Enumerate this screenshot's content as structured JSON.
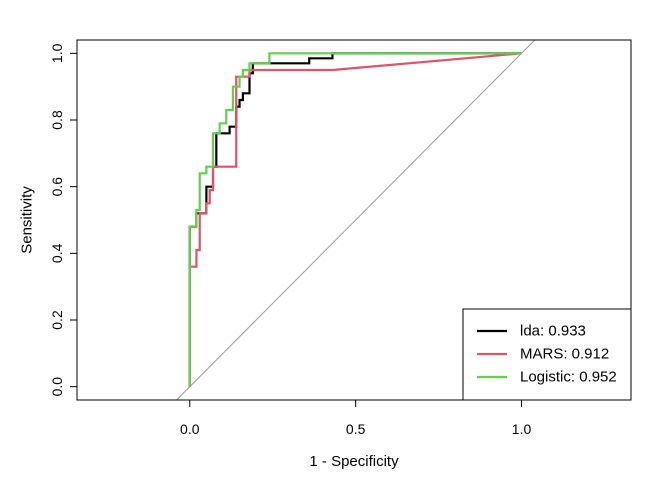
{
  "chart_data": {
    "type": "line",
    "title": "",
    "xlabel": "1 - Specificity",
    "ylabel": "Sensitivity",
    "xlim": [
      -0.34,
      1.33
    ],
    "ylim": [
      -0.04,
      1.04
    ],
    "xticks": [
      0.0,
      0.5,
      1.0
    ],
    "xtick_labels": [
      "0.0",
      "0.5",
      "1.0"
    ],
    "yticks": [
      0.0,
      0.2,
      0.4,
      0.6,
      0.8,
      1.0
    ],
    "ytick_labels": [
      "0.0",
      "0.2",
      "0.4",
      "0.6",
      "0.8",
      "1.0"
    ],
    "grid": false,
    "legend_position": "bottom-right",
    "reference_line": {
      "x": [
        -0.04,
        1.04
      ],
      "y": [
        -0.04,
        1.04
      ],
      "color": "#999999"
    },
    "series": [
      {
        "name": "lda: 0.933",
        "color": "#000000",
        "x": [
          0.0,
          0.0,
          0.02,
          0.02,
          0.03,
          0.03,
          0.05,
          0.05,
          0.07,
          0.07,
          0.08,
          0.08,
          0.12,
          0.12,
          0.14,
          0.14,
          0.15,
          0.15,
          0.16,
          0.16,
          0.18,
          0.18,
          0.19,
          0.19,
          0.36,
          0.36,
          0.43,
          0.43,
          1.0
        ],
        "y": [
          0.0,
          0.48,
          0.48,
          0.52,
          0.52,
          0.52,
          0.52,
          0.6,
          0.6,
          0.66,
          0.66,
          0.76,
          0.76,
          0.78,
          0.78,
          0.84,
          0.84,
          0.86,
          0.86,
          0.88,
          0.88,
          0.94,
          0.94,
          0.97,
          0.97,
          0.985,
          0.985,
          1.0,
          1.0
        ]
      },
      {
        "name": "MARS: 0.912",
        "color": "#DF536B",
        "x": [
          0.0,
          0.0,
          0.02,
          0.02,
          0.03,
          0.03,
          0.05,
          0.05,
          0.06,
          0.06,
          0.07,
          0.07,
          0.1,
          0.1,
          0.14,
          0.14,
          0.18,
          0.18,
          0.43,
          1.0
        ],
        "y": [
          0.0,
          0.36,
          0.36,
          0.41,
          0.41,
          0.52,
          0.52,
          0.55,
          0.55,
          0.59,
          0.59,
          0.66,
          0.66,
          0.66,
          0.66,
          0.93,
          0.93,
          0.95,
          0.95,
          1.0
        ]
      },
      {
        "name": "Logistic: 0.952",
        "color": "#61D04F",
        "x": [
          0.0,
          0.0,
          0.02,
          0.02,
          0.03,
          0.03,
          0.05,
          0.05,
          0.07,
          0.07,
          0.09,
          0.09,
          0.11,
          0.11,
          0.13,
          0.13,
          0.15,
          0.15,
          0.16,
          0.16,
          0.18,
          0.18,
          0.24,
          0.24,
          0.43,
          0.43,
          1.0
        ],
        "y": [
          0.0,
          0.48,
          0.48,
          0.53,
          0.53,
          0.64,
          0.64,
          0.66,
          0.66,
          0.76,
          0.76,
          0.79,
          0.79,
          0.83,
          0.83,
          0.9,
          0.9,
          0.93,
          0.93,
          0.95,
          0.95,
          0.97,
          0.97,
          1.0,
          1.0,
          1.0,
          1.0
        ]
      }
    ]
  }
}
